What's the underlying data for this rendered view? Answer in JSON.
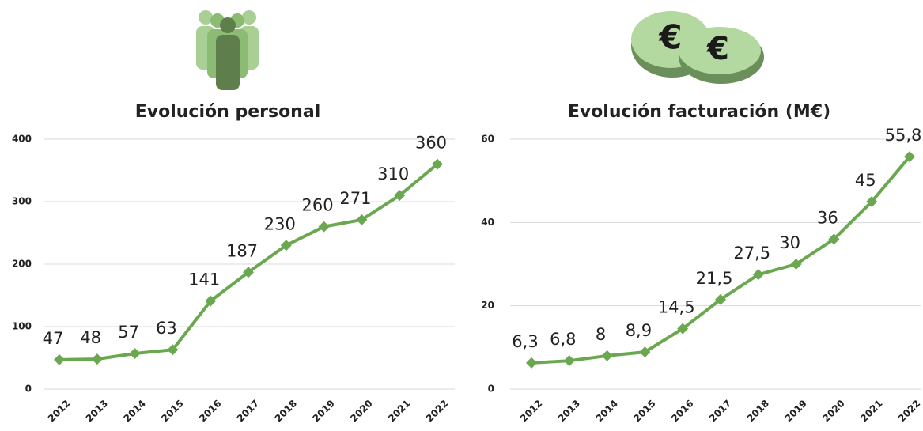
{
  "chart_data": [
    {
      "type": "line",
      "title": "Evolución personal",
      "categories": [
        "2012",
        "2013",
        "2014",
        "2015",
        "2016",
        "2017",
        "2018",
        "2019",
        "2020",
        "2021",
        "2022"
      ],
      "values": [
        47,
        48,
        57,
        63,
        141,
        187,
        230,
        260,
        271,
        310,
        360
      ],
      "color": "#6aa84f",
      "ylim": [
        0,
        400
      ],
      "yticks": [
        0,
        100,
        200,
        300,
        400
      ],
      "grid": true
    },
    {
      "type": "line",
      "title": "Evolución facturación (M€)",
      "categories": [
        "2012",
        "2013",
        "2014",
        "2015",
        "2016",
        "2017",
        "2018",
        "2019",
        "2020",
        "2021",
        "2022"
      ],
      "values": [
        6.3,
        6.8,
        8,
        8.9,
        14.5,
        21.5,
        27.5,
        30,
        36,
        45,
        55.8
      ],
      "value_labels": [
        "6,3",
        "6,8",
        "8",
        "8,9",
        "14,5",
        "21,5",
        "27,5",
        "30",
        "36",
        "45",
        "55,8"
      ],
      "color": "#6aa84f",
      "ylim": [
        0,
        60
      ],
      "yticks": [
        0,
        20,
        40,
        60
      ],
      "grid": true
    }
  ]
}
